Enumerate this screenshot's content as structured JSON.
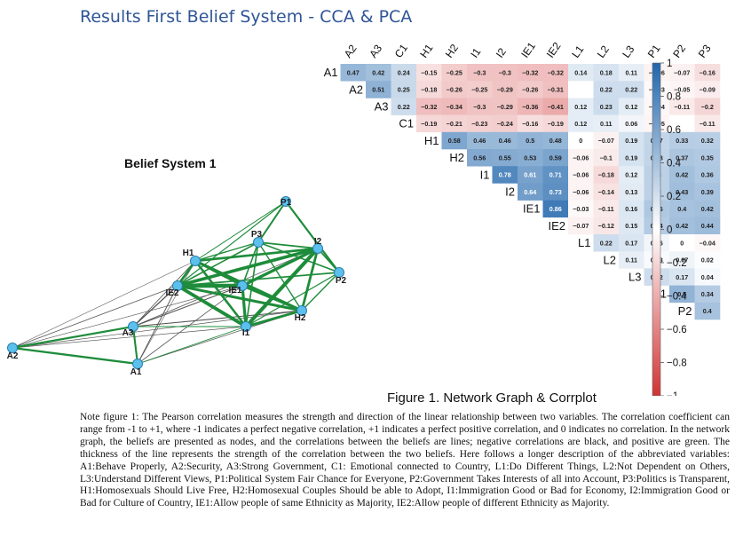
{
  "slide": {
    "title": "Results First Belief System - CCA & PCA"
  },
  "network": {
    "title": "Belief System 1",
    "nodes": [
      "P1",
      "P3",
      "H1",
      "I2",
      "P2",
      "IE2",
      "IE1",
      "H2",
      "A3",
      "I1",
      "A2",
      "A1"
    ],
    "colors": {
      "positive": "#1e8c3a",
      "negative": "#555555",
      "node_fill": "#5bc0eb",
      "node_stroke": "#2a7fb0"
    }
  },
  "chart_data": {
    "type": "heatmap",
    "title": "Figure 1. Network Graph & Corrplot",
    "variables": [
      "A1",
      "A2",
      "A3",
      "C1",
      "H1",
      "H2",
      "I1",
      "I2",
      "IE1",
      "IE2",
      "L1",
      "L2",
      "L3",
      "P1",
      "P2",
      "P3"
    ],
    "correlations": [
      {
        "row": "A1",
        "values": [
          "0.47",
          "0.42",
          "0.24",
          "-0.15",
          "-0.25",
          "-0.3",
          "-0.3",
          "-0.32",
          "-0.32",
          "0.14",
          "0.18",
          "0.11",
          "-0.06",
          "-0.07",
          "-0.16"
        ]
      },
      {
        "row": "A2",
        "values": [
          "0.51",
          "0.25",
          "-0.18",
          "-0.26",
          "-0.25",
          "-0.29",
          "-0.26",
          "-0.31",
          "",
          "0.22",
          "0.22",
          "-0.03",
          "-0.05",
          "-0.09"
        ]
      },
      {
        "row": "A3",
        "values": [
          "0.22",
          "-0.32",
          "-0.34",
          "-0.3",
          "-0.29",
          "-0.36",
          "-0.41",
          "0.12",
          "0.23",
          "0.12",
          "-0.04",
          "-0.11",
          "-0.2"
        ]
      },
      {
        "row": "C1",
        "values": [
          "-0.19",
          "-0.21",
          "-0.23",
          "-0.24",
          "-0.16",
          "-0.19",
          "0.12",
          "0.11",
          "0.06",
          "-0.05",
          "",
          "-0.11"
        ]
      },
      {
        "row": "H1",
        "values": [
          "0.58",
          "0.46",
          "0.46",
          "0.5",
          "0.48",
          "0",
          "-0.07",
          "0.19",
          "0.27",
          "0.33",
          "0.32"
        ]
      },
      {
        "row": "H2",
        "values": [
          "0.56",
          "0.55",
          "0.53",
          "0.59",
          "-0.06",
          "-0.1",
          "0.19",
          "0.28",
          "0.37",
          "0.35"
        ]
      },
      {
        "row": "I1",
        "values": [
          "0.78",
          "0.61",
          "0.71",
          "-0.06",
          "-0.18",
          "0.12",
          "0.3",
          "0.42",
          "0.36"
        ]
      },
      {
        "row": "I2",
        "values": [
          "0.64",
          "0.73",
          "-0.06",
          "-0.14",
          "0.13",
          "0.3",
          "0.43",
          "0.39"
        ]
      },
      {
        "row": "IE1",
        "values": [
          "0.86",
          "-0.03",
          "-0.11",
          "0.16",
          "0.36",
          "0.4",
          "0.42"
        ]
      },
      {
        "row": "IE2",
        "values": [
          "-0.07",
          "-0.12",
          "0.15",
          "0.34",
          "0.42",
          "0.44"
        ]
      },
      {
        "row": "L1",
        "values": [
          "0.22",
          "0.17",
          "0.06",
          "0",
          "-0.04"
        ]
      },
      {
        "row": "L2",
        "values": [
          "0.11",
          "0.03",
          "0.07",
          "0.02"
        ]
      },
      {
        "row": "L3",
        "values": [
          "0.22",
          "0.17",
          "0.04"
        ]
      },
      {
        "row": "P1",
        "values": [
          "0.5",
          "0.34"
        ]
      },
      {
        "row": "P2",
        "values": [
          "0.4"
        ]
      }
    ],
    "colorbar_ticks": [
      "1",
      "0.8",
      "0.6",
      "0.4",
      "0.2",
      "0",
      "-0.2",
      "-0.4",
      "-0.6",
      "-0.8",
      "-1"
    ],
    "color_range": [
      -1,
      1
    ],
    "colors": {
      "positive": "#2166ac",
      "mid": "#ffffff",
      "negative": "#cf3333"
    }
  },
  "note": "Note figure 1: The Pearson correlation measures the strength and direction of the linear relationship between two variables. The correlation coefficient can range from -1 to +1, where -1 indicates a perfect negative correlation, +1 indicates a perfect positive correlation, and 0 indicates no correlation. In the network graph, the beliefs are presented as nodes, and the correlations between the beliefs are lines; negative correlations are black, and positive are green. The thickness of the line represents the strength of the correlation between the two beliefs. Here follows a longer description of the abbreviated variables: A1:Behave Properly, A2:Security, A3:Strong Government, C1: Emotional connected to Country, L1:Do Different Things, L2:Not Dependent on Others, L3:Understand Different Views, P1:Political System Fair Chance for Everyone, P2:Government Takes Interests of all into Account, P3:Politics is Transparent, H1:Homosexuals Should Live Free, H2:Homosexual Couples Should be able to Adopt, I1:Immigration Good or Bad for Economy, I2:Immigration Good or Bad for Culture of Country, IE1:Allow people of same Ethnicity as Majority, IE2:Allow people of different Ethnicity as Majority."
}
